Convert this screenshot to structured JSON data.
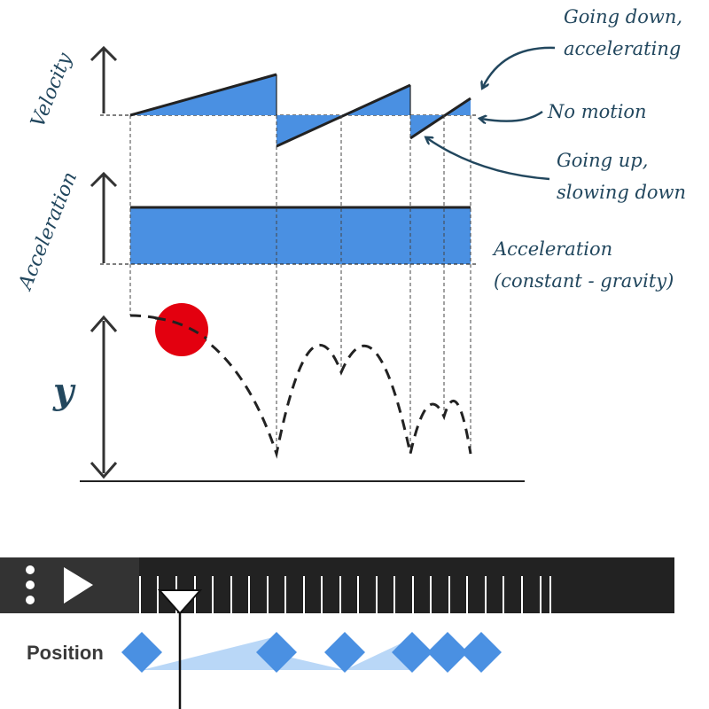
{
  "diagram": {
    "axis_labels": {
      "velocity": "Velocity",
      "acceleration": "Acceleration",
      "y": "y"
    },
    "annotations": {
      "going_down_line1": "Going down,",
      "going_down_line2": "accelerating",
      "no_motion": "No motion",
      "going_up_line1": "Going up,",
      "going_up_line2": "slowing down",
      "accel_line1": "Acceleration",
      "accel_line2": "(constant - gravity)"
    },
    "colors": {
      "fill_blue": "#4a90e2",
      "ink": "#222222",
      "note": "#22475e",
      "ball": "#e3000f",
      "timeline_bar": "#222222",
      "timeline_handle": "#333333",
      "keyframe": "#4a90e2",
      "keyframe_band": "#b9d7f7"
    }
  },
  "timeline": {
    "position_label": "Position",
    "menu_icon": "vertical-dots-icon",
    "play_icon": "play-icon",
    "playhead_icon": "playhead-triangle-icon",
    "keyframe_icon": "diamond-icon"
  }
}
